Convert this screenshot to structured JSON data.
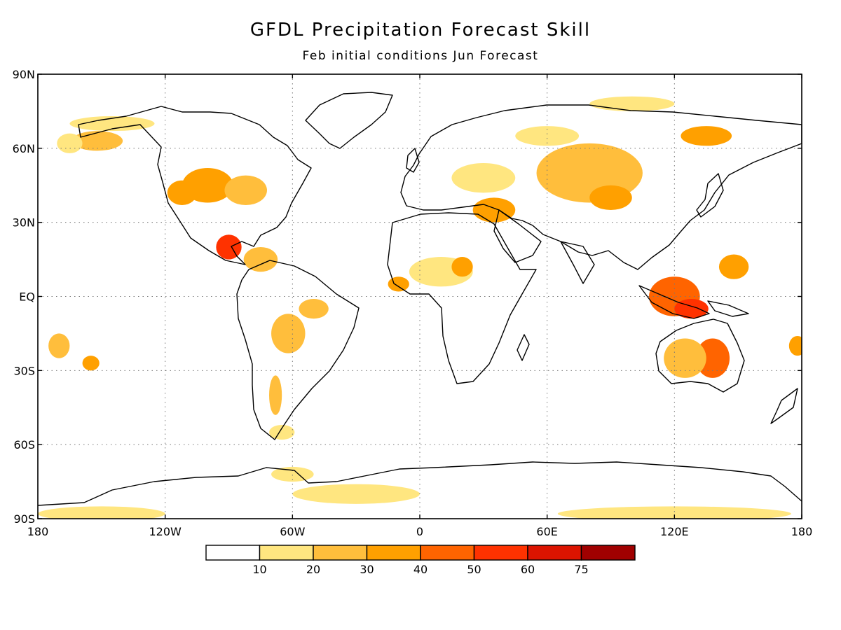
{
  "title": "GFDL Precipitation Forecast Skill",
  "subtitle": "Feb initial conditions  Jun Forecast",
  "map": {
    "lon_range": [
      -180,
      180
    ],
    "lat_range": [
      -90,
      90
    ],
    "grid": true,
    "lat_ticks": [
      {
        "value": 90,
        "label": "90N"
      },
      {
        "value": 60,
        "label": "60N"
      },
      {
        "value": 30,
        "label": "30N"
      },
      {
        "value": 0,
        "label": "EQ"
      },
      {
        "value": -30,
        "label": "30S"
      },
      {
        "value": -60,
        "label": "60S"
      },
      {
        "value": -90,
        "label": "90S"
      }
    ],
    "lon_ticks": [
      {
        "value": -180,
        "label": "180"
      },
      {
        "value": -120,
        "label": "120W"
      },
      {
        "value": -60,
        "label": "60W"
      },
      {
        "value": 0,
        "label": "0"
      },
      {
        "value": 60,
        "label": "60E"
      },
      {
        "value": 120,
        "label": "120E"
      },
      {
        "value": 180,
        "label": "180"
      }
    ]
  },
  "colorbar": {
    "colors": [
      "#ffffff",
      "#ffe680",
      "#ffbe3c",
      "#ffa000",
      "#ff6400",
      "#ff3200",
      "#dc1400",
      "#a00000"
    ],
    "labels": [
      "10",
      "20",
      "30",
      "40",
      "50",
      "60",
      "75"
    ]
  },
  "skill_regions": [
    {
      "lon": -152,
      "lat": 63,
      "rx": 12,
      "ry": 4,
      "level": 2
    },
    {
      "lon": -165,
      "lat": 62,
      "rx": 6,
      "ry": 4,
      "level": 1
    },
    {
      "lon": -100,
      "lat": 45,
      "rx": 12,
      "ry": 7,
      "level": 3
    },
    {
      "lon": -82,
      "lat": 43,
      "rx": 10,
      "ry": 6,
      "level": 2
    },
    {
      "lon": -112,
      "lat": 42,
      "rx": 7,
      "ry": 5,
      "level": 3
    },
    {
      "lon": -90,
      "lat": 20,
      "rx": 6,
      "ry": 5,
      "level": 5
    },
    {
      "lon": -75,
      "lat": 15,
      "rx": 8,
      "ry": 5,
      "level": 2
    },
    {
      "lon": -62,
      "lat": -15,
      "rx": 8,
      "ry": 8,
      "level": 2
    },
    {
      "lon": -50,
      "lat": -5,
      "rx": 7,
      "ry": 4,
      "level": 2
    },
    {
      "lon": -68,
      "lat": -40,
      "rx": 3,
      "ry": 8,
      "level": 2
    },
    {
      "lon": -65,
      "lat": -55,
      "rx": 6,
      "ry": 3,
      "level": 1
    },
    {
      "lon": -170,
      "lat": -20,
      "rx": 5,
      "ry": 5,
      "level": 2
    },
    {
      "lon": -155,
      "lat": -27,
      "rx": 4,
      "ry": 3,
      "level": 3
    },
    {
      "lon": -10,
      "lat": 5,
      "rx": 5,
      "ry": 3,
      "level": 3
    },
    {
      "lon": 10,
      "lat": 10,
      "rx": 15,
      "ry": 6,
      "level": 1
    },
    {
      "lon": 20,
      "lat": 12,
      "rx": 5,
      "ry": 4,
      "level": 3
    },
    {
      "lon": 35,
      "lat": 35,
      "rx": 10,
      "ry": 5,
      "level": 3
    },
    {
      "lon": 30,
      "lat": 48,
      "rx": 15,
      "ry": 6,
      "level": 1
    },
    {
      "lon": 80,
      "lat": 50,
      "rx": 25,
      "ry": 12,
      "level": 2
    },
    {
      "lon": 90,
      "lat": 40,
      "rx": 10,
      "ry": 5,
      "level": 3
    },
    {
      "lon": 135,
      "lat": 65,
      "rx": 12,
      "ry": 4,
      "level": 3
    },
    {
      "lon": 120,
      "lat": 0,
      "rx": 12,
      "ry": 8,
      "level": 4
    },
    {
      "lon": 128,
      "lat": -5,
      "rx": 8,
      "ry": 4,
      "level": 5
    },
    {
      "lon": 148,
      "lat": 12,
      "rx": 7,
      "ry": 5,
      "level": 3
    },
    {
      "lon": 138,
      "lat": -25,
      "rx": 8,
      "ry": 8,
      "level": 4
    },
    {
      "lon": 125,
      "lat": -25,
      "rx": 10,
      "ry": 8,
      "level": 2
    },
    {
      "lon": 178,
      "lat": -20,
      "rx": 4,
      "ry": 4,
      "level": 3
    },
    {
      "lon": -30,
      "lat": -80,
      "rx": 30,
      "ry": 4,
      "level": 1
    },
    {
      "lon": -60,
      "lat": -72,
      "rx": 10,
      "ry": 3,
      "level": 1
    },
    {
      "lon": 120,
      "lat": -88,
      "rx": 55,
      "ry": 3,
      "level": 1
    },
    {
      "lon": -150,
      "lat": -88,
      "rx": 30,
      "ry": 3,
      "level": 1
    },
    {
      "lon": -145,
      "lat": 70,
      "rx": 20,
      "ry": 3,
      "level": 1
    },
    {
      "lon": 100,
      "lat": 78,
      "rx": 20,
      "ry": 3,
      "level": 1
    },
    {
      "lon": 60,
      "lat": 65,
      "rx": 15,
      "ry": 4,
      "level": 1
    }
  ]
}
